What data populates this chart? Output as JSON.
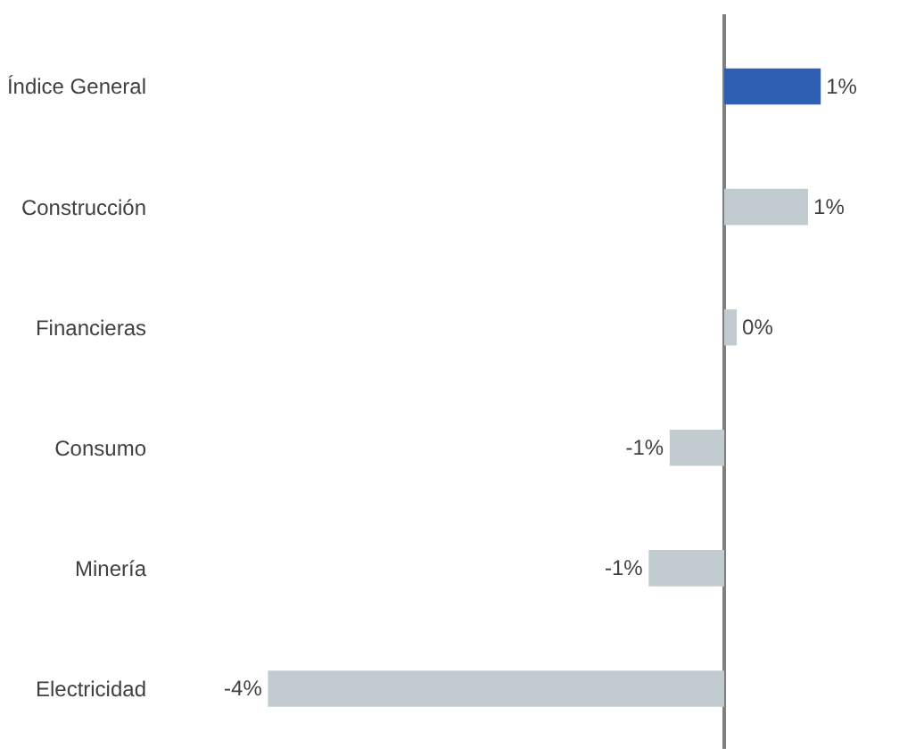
{
  "chart_data": {
    "type": "bar",
    "orientation": "horizontal",
    "categories": [
      "Índice General",
      "Construcción",
      "Financieras",
      "Consumo",
      "Minería",
      "Electricidad"
    ],
    "values": [
      0.92,
      0.8,
      0.12,
      -0.52,
      -0.72,
      -4.35
    ],
    "colors": [
      "#2f5fb0",
      "#c2cbd0",
      "#c2cbd0",
      "#c2cbd0",
      "#c2cbd0",
      "#c2cbd0"
    ],
    "value_labels": [
      "1%",
      "1%",
      "0%",
      "-1%",
      "-1%",
      "-4%"
    ],
    "grid": false
  }
}
